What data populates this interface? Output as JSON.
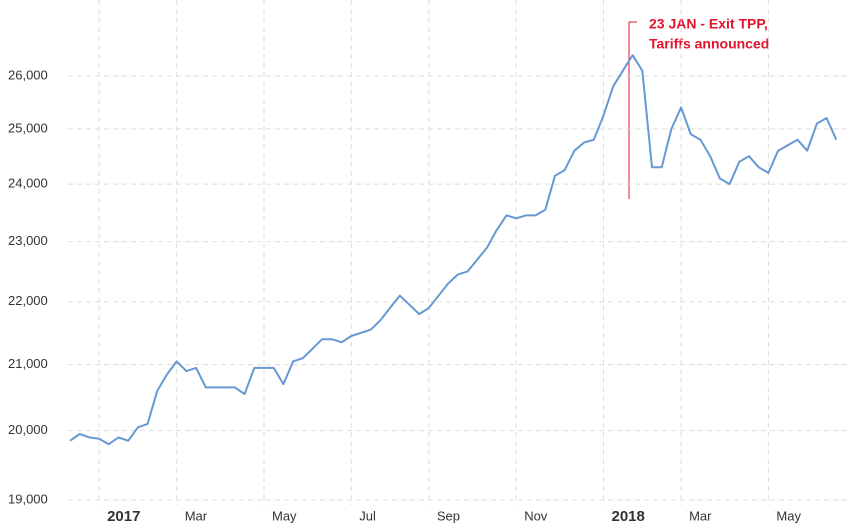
{
  "chart_data": {
    "type": "line",
    "categories": [
      null,
      null,
      null,
      "2017",
      null,
      null,
      null,
      null,
      null,
      null,
      null,
      "Mar",
      null,
      null,
      null,
      null,
      null,
      null,
      null,
      null,
      "May",
      null,
      null,
      null,
      null,
      null,
      null,
      null,
      null,
      "Jul",
      null,
      null,
      null,
      null,
      null,
      null,
      null,
      "Sep",
      null,
      null,
      null,
      null,
      null,
      null,
      null,
      null,
      "Nov",
      null,
      null,
      null,
      null,
      null,
      null,
      null,
      null,
      "2018",
      null,
      null,
      null,
      null,
      null,
      null,
      null,
      "Mar",
      null,
      null,
      null,
      null,
      null,
      null,
      null,
      null,
      "May",
      null,
      null,
      null,
      null,
      null,
      null,
      null
    ],
    "series": [
      {
        "color": "#6699d3",
        "values": [
          19850,
          19950,
          19900,
          19880,
          19800,
          19900,
          19850,
          20050,
          20100,
          20600,
          20850,
          21050,
          20900,
          20950,
          20650,
          20650,
          20650,
          20650,
          20550,
          20950,
          20950,
          20950,
          20700,
          21050,
          21100,
          21250,
          21400,
          21400,
          21350,
          21450,
          21500,
          21550,
          21700,
          21900,
          22100,
          21950,
          21800,
          21900,
          22100,
          22300,
          22450,
          22500,
          22700,
          22900,
          23200,
          23450,
          23400,
          23450,
          23450,
          23550,
          24150,
          24250,
          24600,
          24750,
          24800,
          25250,
          25800,
          26100,
          26400,
          26100,
          24300,
          24300,
          25000,
          25400,
          24900,
          24800,
          24500,
          24100,
          24000,
          24400,
          24500,
          24300,
          24200,
          24600,
          24700,
          24800,
          24600,
          25100,
          25200,
          24800
        ]
      }
    ],
    "log_scale": true,
    "ylim": [
      18930,
      27500
    ],
    "yticks": [
      {
        "value": 19000,
        "label": "19,000"
      },
      {
        "value": 20000,
        "label": "20,000"
      },
      {
        "value": 21000,
        "label": "21,000"
      },
      {
        "value": 22000,
        "label": "22,000"
      },
      {
        "value": 23000,
        "label": "23,000"
      },
      {
        "value": 24000,
        "label": "24,000"
      },
      {
        "value": 25000,
        "label": "25,000"
      },
      {
        "value": 26000,
        "label": "26,000"
      }
    ],
    "grid": true,
    "annotation": [
      "23 JAN - Exit TPP,",
      "Tariffs announced"
    ]
  }
}
